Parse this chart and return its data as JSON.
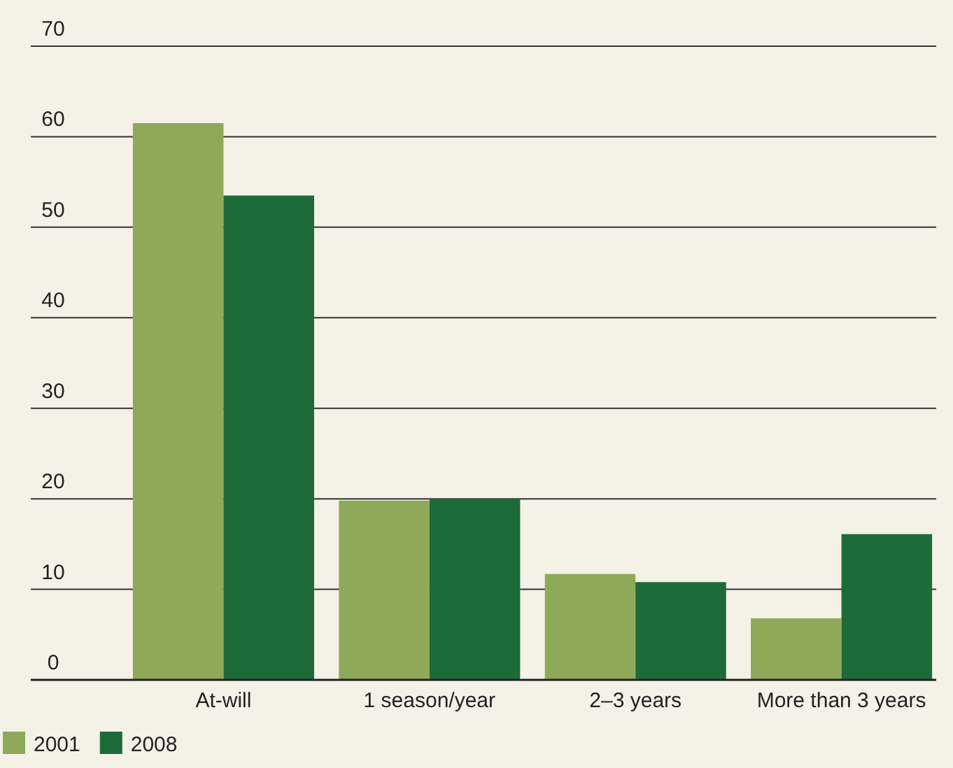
{
  "chart_data": {
    "type": "bar",
    "categories": [
      "At-will",
      "1 season/year",
      "2–3 years",
      "More than 3 years"
    ],
    "series": [
      {
        "name": "2001",
        "color": "#8fa95a",
        "values": [
          61.5,
          19.8,
          11.7,
          6.8
        ]
      },
      {
        "name": "2008",
        "color": "#1e6b3a",
        "values": [
          53.5,
          20,
          10.8,
          16.1
        ]
      }
    ],
    "ylim": [
      0,
      70
    ],
    "yticks": [
      0,
      10,
      20,
      30,
      40,
      50,
      60,
      70
    ],
    "grid": "y",
    "legend": "bottom left"
  }
}
